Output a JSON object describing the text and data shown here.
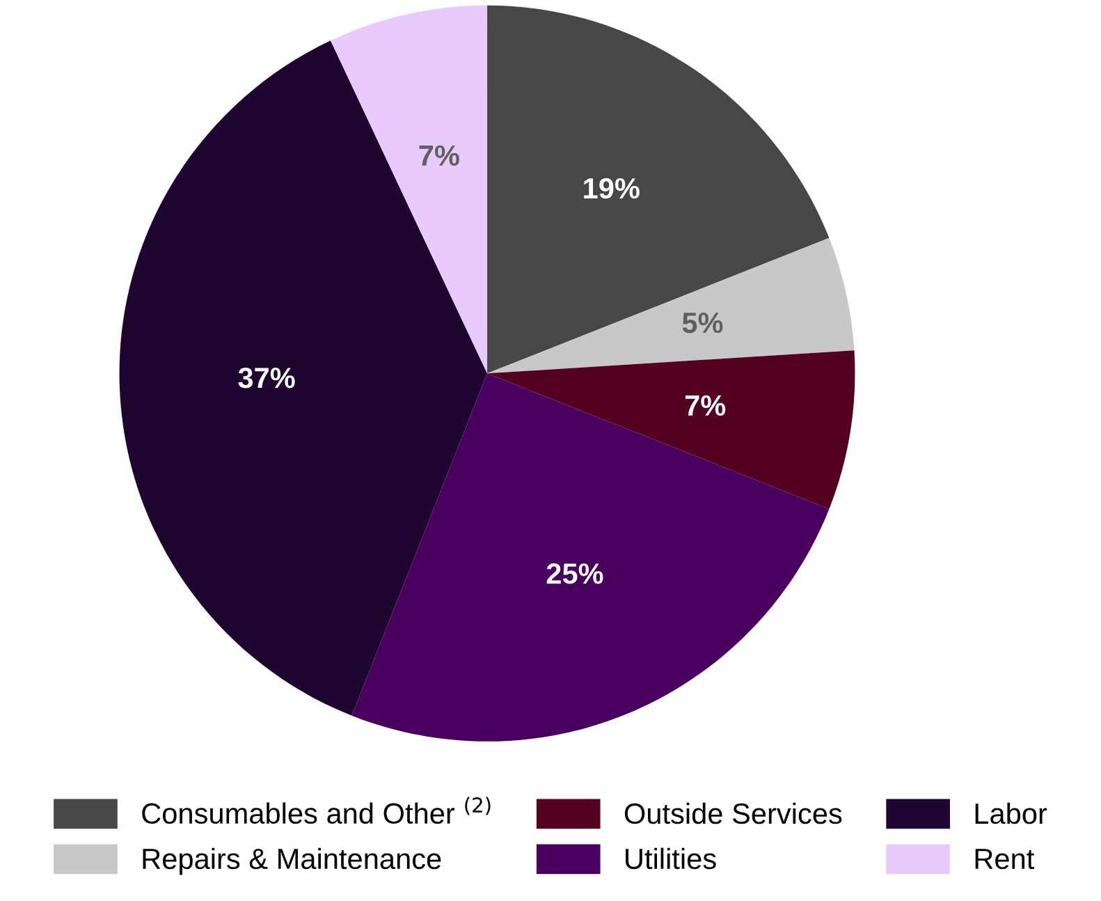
{
  "chart_data": {
    "type": "pie",
    "categories": [
      "Consumables and Other $^{(2)}$",
      "Repairs & Maintenance",
      "Outside Services",
      "Utilities",
      "Labor",
      "Rent"
    ],
    "values": [
      19,
      5,
      7,
      25,
      37,
      7
    ],
    "colors": [
      "#474747",
      "#c8c8c8",
      "#54001f",
      "#4a005e",
      "#1e0630",
      "#e8cbfc"
    ],
    "value_labels": [
      "19%",
      "5%",
      "7%",
      "25%",
      "37%",
      "7%"
    ],
    "legend": "bottom"
  }
}
